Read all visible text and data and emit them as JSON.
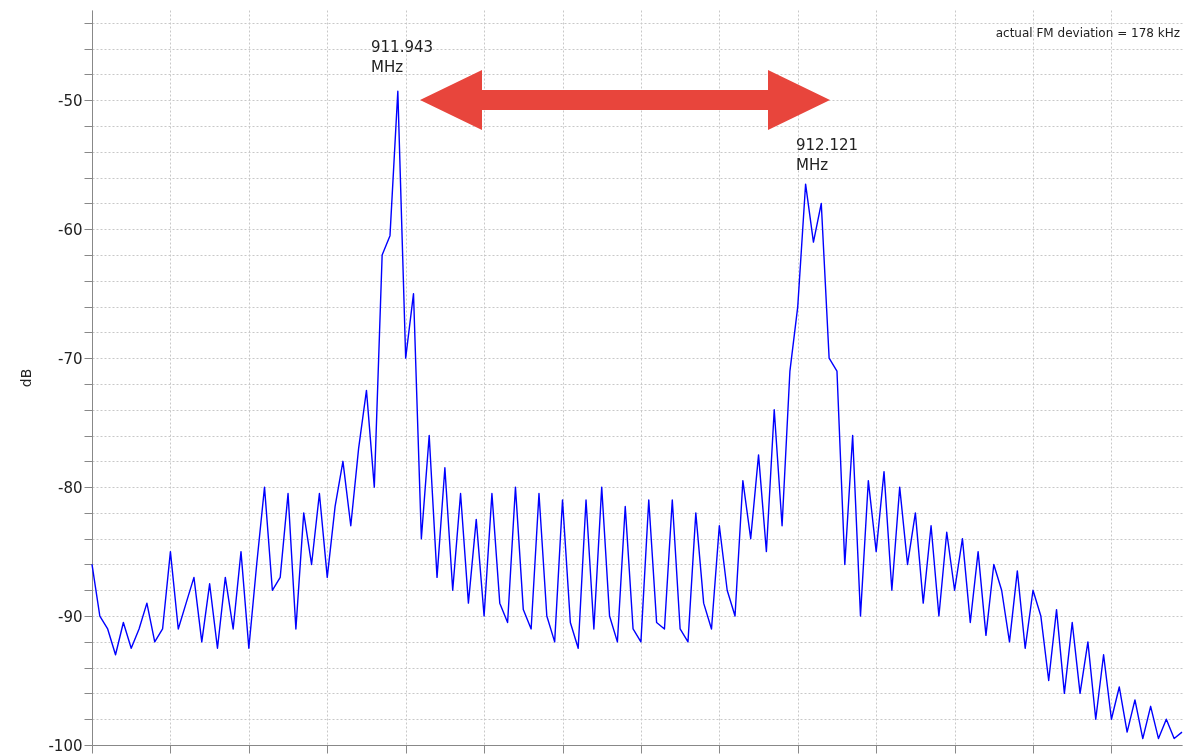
{
  "chart_data": {
    "type": "line",
    "ylabel": "dB",
    "categories": [
      null,
      null,
      null,
      null,
      null,
      null,
      null,
      null,
      null,
      null,
      null,
      null,
      null,
      null,
      null,
      null,
      null,
      null,
      null,
      null,
      null,
      null,
      null,
      null,
      null,
      null,
      null,
      null,
      null,
      null,
      null,
      null,
      null,
      null,
      null,
      null,
      null,
      null,
      null,
      null,
      null,
      null,
      null,
      null,
      null,
      null,
      null,
      null,
      null,
      null,
      null,
      null,
      null,
      null,
      null,
      null,
      null,
      null,
      null,
      null,
      null,
      null,
      null,
      null,
      null,
      null,
      null,
      null,
      null,
      null,
      null,
      null,
      null,
      null,
      null,
      null,
      null,
      null,
      null,
      null,
      null,
      null,
      null,
      null,
      null,
      null,
      null,
      null,
      null,
      null,
      null,
      null,
      null,
      null,
      null,
      null,
      null,
      null,
      null,
      null,
      null,
      null,
      null,
      null,
      null,
      null,
      null,
      null,
      null,
      null,
      null,
      null,
      null,
      null,
      null,
      null,
      null,
      null,
      null,
      null,
      null,
      null,
      null,
      null,
      null,
      null,
      null,
      null,
      null,
      null,
      null,
      null,
      null,
      null,
      null,
      null,
      null,
      null,
      null,
      null
    ],
    "series": [
      {
        "color": "#0000ff",
        "values": [
          -86,
          -90,
          -91,
          -93,
          -90.5,
          -92.5,
          -91,
          -89,
          -92,
          -91,
          -85,
          -91,
          -89,
          -87,
          -92,
          -87.5,
          -92.5,
          -87,
          -91,
          -85,
          -92.5,
          -86,
          -80,
          -88,
          -87,
          -80.5,
          -91,
          -82,
          -86,
          -80.5,
          -87,
          -81.5,
          -78,
          -83,
          -77,
          -72.5,
          -80,
          -62,
          -60.5,
          -49.3,
          -70,
          -65,
          -84,
          -76,
          -87,
          -78.5,
          -88,
          -80.5,
          -89,
          -82.5,
          -90,
          -80.5,
          -89,
          -90.5,
          -80,
          -89.5,
          -91,
          -80.5,
          -90,
          -92,
          -81,
          -90.5,
          -92.5,
          -81,
          -91,
          -80,
          -90,
          -92,
          -81.5,
          -91,
          -92,
          -81,
          -90.5,
          -91,
          -81,
          -91,
          -92,
          -82,
          -89,
          -91,
          -83,
          -88,
          -90,
          -79.5,
          -84,
          -77.5,
          -85,
          -74,
          -83,
          -71,
          -66,
          -56.5,
          -61,
          -58,
          -70,
          -71,
          -86,
          -76,
          -90,
          -79.5,
          -85,
          -78.8,
          -88,
          -80,
          -86,
          -82,
          -89,
          -83,
          -90,
          -83.5,
          -88,
          -84,
          -90.5,
          -85,
          -91.5,
          -86,
          -88,
          -92,
          -86.5,
          -92.5,
          -88,
          -90,
          -95,
          -89.5,
          -96,
          -90.5,
          -96,
          -92,
          -98,
          -93,
          -98,
          -95.5,
          -99,
          -96.5,
          -99.5,
          -97,
          -99.5,
          -98,
          -99.5,
          -99
        ]
      }
    ],
    "ylim": [
      -100,
      -43
    ],
    "yticks": [
      -100,
      {
        "value": -98,
        "label": null
      },
      {
        "value": -96,
        "label": null
      },
      {
        "value": -94,
        "label": null
      },
      {
        "value": -92,
        "label": null
      },
      -90,
      {
        "value": -88,
        "label": null
      },
      {
        "value": -86,
        "label": null
      },
      {
        "value": -84,
        "label": null
      },
      {
        "value": -82,
        "label": null
      },
      -80,
      {
        "value": -78,
        "label": null
      },
      {
        "value": -76,
        "label": null
      },
      {
        "value": -74,
        "label": null
      },
      {
        "value": -72,
        "label": null
      },
      -70,
      {
        "value": -68,
        "label": null
      },
      {
        "value": -66,
        "label": null
      },
      {
        "value": -64,
        "label": null
      },
      {
        "value": -62,
        "label": null
      },
      -60,
      {
        "value": -58,
        "label": null
      },
      {
        "value": -56,
        "label": null
      },
      {
        "value": -54,
        "label": null
      },
      {
        "value": -52,
        "label": null
      },
      -50,
      {
        "value": -48,
        "label": null
      },
      {
        "value": -46,
        "label": null
      },
      {
        "value": -44,
        "label": null
      }
    ],
    "grid": true,
    "tick_labels": "y",
    "line_style": "solid",
    "annotations": [
      "911.943 MHz",
      "912.121 MHz",
      "actual FM deviation = 178 kHz"
    ]
  }
}
